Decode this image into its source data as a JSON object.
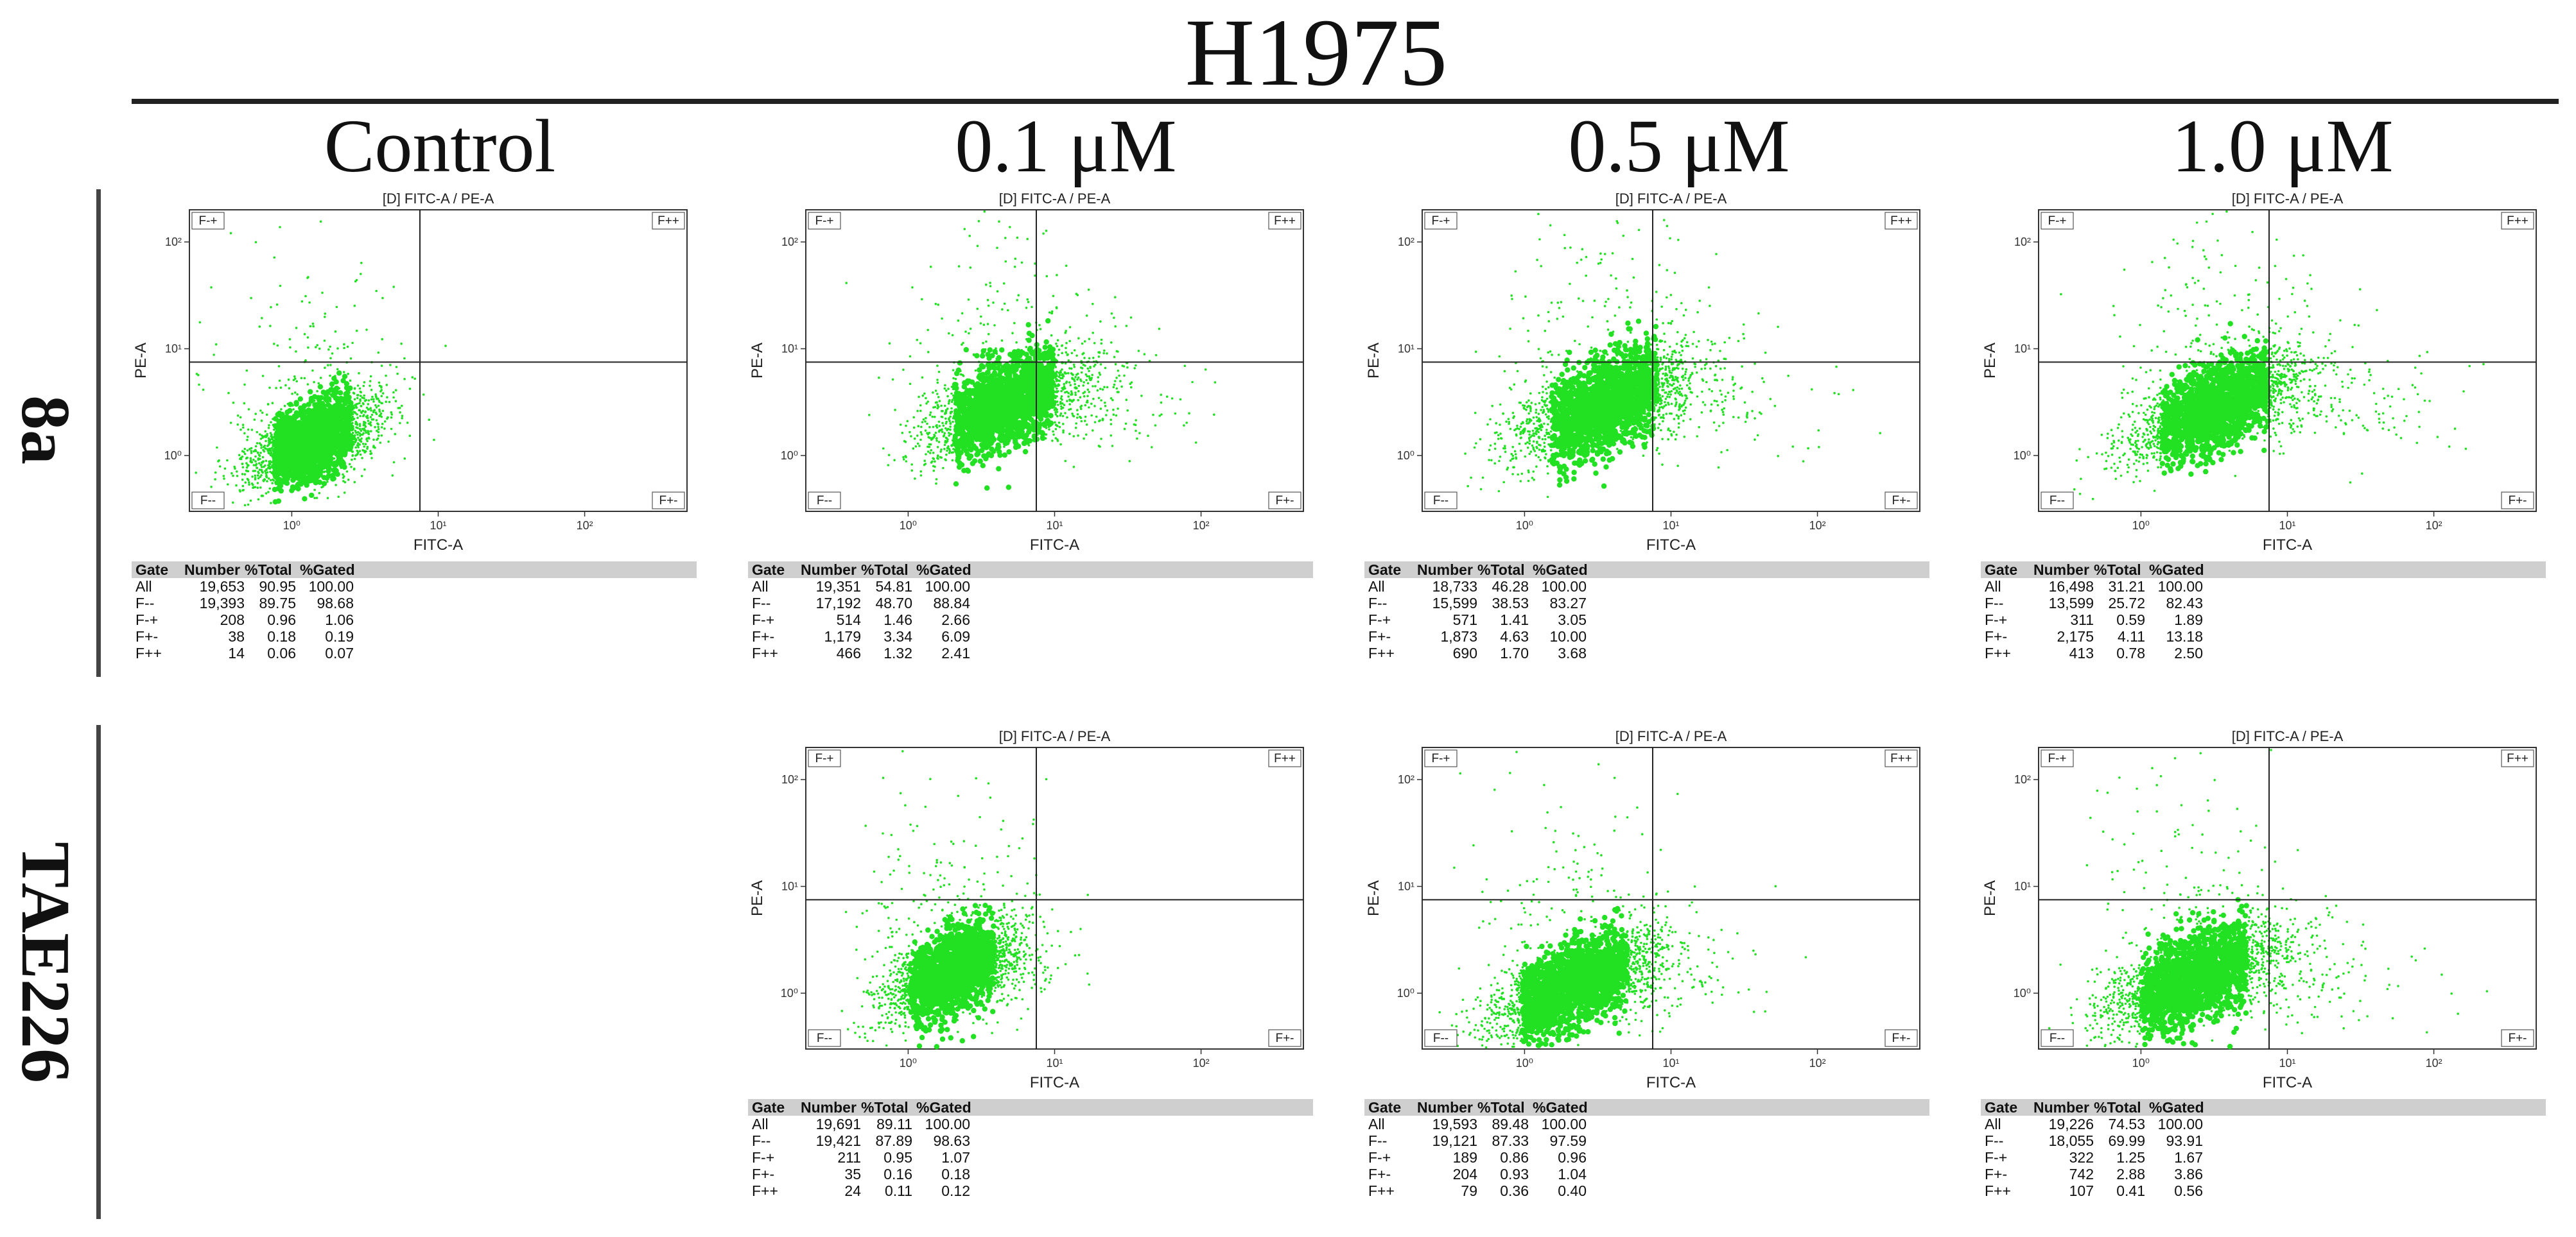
{
  "title": "H1975",
  "columns": [
    "Control",
    "0.1 μM",
    "0.5 μM",
    "1.0 μM"
  ],
  "rows": [
    "8a",
    "TAE226"
  ],
  "colors": {
    "dots": "#22e022",
    "axis": "#333333",
    "header_bg": "#cfcfcf"
  },
  "plot_text": {
    "plot_title": "[D] FITC-A / PE-A",
    "xlabel": "FITC-A",
    "ylabel": "PE-A",
    "q_ul": "F-+",
    "q_ur": "F++",
    "q_ll": "F--",
    "q_lr": "F+-",
    "x_ticks": [
      "10⁰",
      "10¹",
      "10²"
    ],
    "y_ticks": [
      "10²",
      "10¹",
      "10⁰"
    ],
    "table_headers": [
      "Gate",
      "Number",
      "%Total",
      "%Gated"
    ]
  },
  "chart_data": [
    {
      "type": "scatter",
      "id": "8a-control",
      "row": "8a",
      "condition": "Control",
      "xscale": "log",
      "yscale": "log",
      "xlim": [
        0.2,
        500
      ],
      "ylim": [
        0.3,
        200
      ],
      "cluster": {
        "cx": 1.4,
        "cy": 1.4,
        "spread_x": 0.22,
        "spread_y": 0.18,
        "tail_x": 0.0,
        "tail_y": 0.5
      },
      "gates": [
        [
          "All",
          "19,653",
          "90.95",
          "100.00"
        ],
        [
          "F--",
          "19,393",
          "89.75",
          "98.68"
        ],
        [
          "F-+",
          "208",
          "0.96",
          "1.06"
        ],
        [
          "F+-",
          "38",
          "0.18",
          "0.19"
        ],
        [
          "F++",
          "14",
          "0.06",
          "0.07"
        ]
      ]
    },
    {
      "type": "scatter",
      "id": "8a-0.1",
      "row": "8a",
      "condition": "0.1 μM",
      "xscale": "log",
      "yscale": "log",
      "xlim": [
        0.2,
        500
      ],
      "ylim": [
        0.3,
        200
      ],
      "cluster": {
        "cx": 4.5,
        "cy": 3.0,
        "spread_x": 0.28,
        "spread_y": 0.2,
        "tail_x": 0.35,
        "tail_y": 0.7
      },
      "gates": [
        [
          "All",
          "19,351",
          "54.81",
          "100.00"
        ],
        [
          "F--",
          "17,192",
          "48.70",
          "88.84"
        ],
        [
          "F-+",
          "514",
          "1.46",
          "2.66"
        ],
        [
          "F+-",
          "1,179",
          "3.34",
          "6.09"
        ],
        [
          "F++",
          "466",
          "1.32",
          "2.41"
        ]
      ]
    },
    {
      "type": "scatter",
      "id": "8a-0.5",
      "row": "8a",
      "condition": "0.5 μM",
      "xscale": "log",
      "yscale": "log",
      "xlim": [
        0.2,
        500
      ],
      "ylim": [
        0.3,
        200
      ],
      "cluster": {
        "cx": 3.5,
        "cy": 3.0,
        "spread_x": 0.3,
        "spread_y": 0.22,
        "tail_x": 0.45,
        "tail_y": 0.75
      },
      "gates": [
        [
          "All",
          "18,733",
          "46.28",
          "100.00"
        ],
        [
          "F--",
          "15,599",
          "38.53",
          "83.27"
        ],
        [
          "F-+",
          "571",
          "1.41",
          "3.05"
        ],
        [
          "F+-",
          "1,873",
          "4.63",
          "10.00"
        ],
        [
          "F++",
          "690",
          "1.70",
          "3.68"
        ]
      ]
    },
    {
      "type": "scatter",
      "id": "8a-1.0",
      "row": "8a",
      "condition": "1.0 μM",
      "xscale": "log",
      "yscale": "log",
      "xlim": [
        0.2,
        500
      ],
      "ylim": [
        0.3,
        200
      ],
      "cluster": {
        "cx": 3.2,
        "cy": 2.8,
        "spread_x": 0.3,
        "spread_y": 0.2,
        "tail_x": 0.6,
        "tail_y": 0.6
      },
      "gates": [
        [
          "All",
          "16,498",
          "31.21",
          "100.00"
        ],
        [
          "F--",
          "13,599",
          "25.72",
          "82.43"
        ],
        [
          "F-+",
          "311",
          "0.59",
          "1.89"
        ],
        [
          "F+-",
          "2,175",
          "4.11",
          "13.18"
        ],
        [
          "F++",
          "413",
          "0.78",
          "2.50"
        ]
      ]
    },
    {
      "type": "scatter",
      "id": "TAE226-0.1",
      "row": "TAE226",
      "condition": "0.1 μM",
      "xscale": "log",
      "yscale": "log",
      "xlim": [
        0.2,
        500
      ],
      "ylim": [
        0.3,
        200
      ],
      "cluster": {
        "cx": 2.0,
        "cy": 1.6,
        "spread_x": 0.24,
        "spread_y": 0.19,
        "tail_x": 0.1,
        "tail_y": 0.45
      },
      "gates": [
        [
          "All",
          "19,691",
          "89.11",
          "100.00"
        ],
        [
          "F--",
          "19,421",
          "87.89",
          "98.63"
        ],
        [
          "F-+",
          "211",
          "0.95",
          "1.07"
        ],
        [
          "F+-",
          "35",
          "0.16",
          "0.18"
        ],
        [
          "F++",
          "24",
          "0.11",
          "0.12"
        ]
      ]
    },
    {
      "type": "scatter",
      "id": "TAE226-0.5",
      "row": "TAE226",
      "condition": "0.5 μM",
      "xscale": "log",
      "yscale": "log",
      "xlim": [
        0.2,
        500
      ],
      "ylim": [
        0.3,
        200
      ],
      "cluster": {
        "cx": 2.2,
        "cy": 1.2,
        "spread_x": 0.3,
        "spread_y": 0.2,
        "tail_x": 0.3,
        "tail_y": 0.55
      },
      "gates": [
        [
          "All",
          "19,593",
          "89.48",
          "100.00"
        ],
        [
          "F--",
          "19,121",
          "87.33",
          "97.59"
        ],
        [
          "F-+",
          "189",
          "0.86",
          "0.96"
        ],
        [
          "F+-",
          "204",
          "0.93",
          "1.04"
        ],
        [
          "F++",
          "79",
          "0.36",
          "0.40"
        ]
      ]
    },
    {
      "type": "scatter",
      "id": "TAE226-1.0",
      "row": "TAE226",
      "condition": "1.0 μM",
      "xscale": "log",
      "yscale": "log",
      "xlim": [
        0.2,
        500
      ],
      "ylim": [
        0.3,
        200
      ],
      "cluster": {
        "cx": 2.3,
        "cy": 1.4,
        "spread_x": 0.3,
        "spread_y": 0.2,
        "tail_x": 0.4,
        "tail_y": 0.6
      },
      "gates": [
        [
          "All",
          "19,226",
          "74.53",
          "100.00"
        ],
        [
          "F--",
          "18,055",
          "69.99",
          "93.91"
        ],
        [
          "F-+",
          "322",
          "1.25",
          "1.67"
        ],
        [
          "F+-",
          "742",
          "2.88",
          "3.86"
        ],
        [
          "F++",
          "107",
          "0.41",
          "0.56"
        ]
      ]
    }
  ]
}
